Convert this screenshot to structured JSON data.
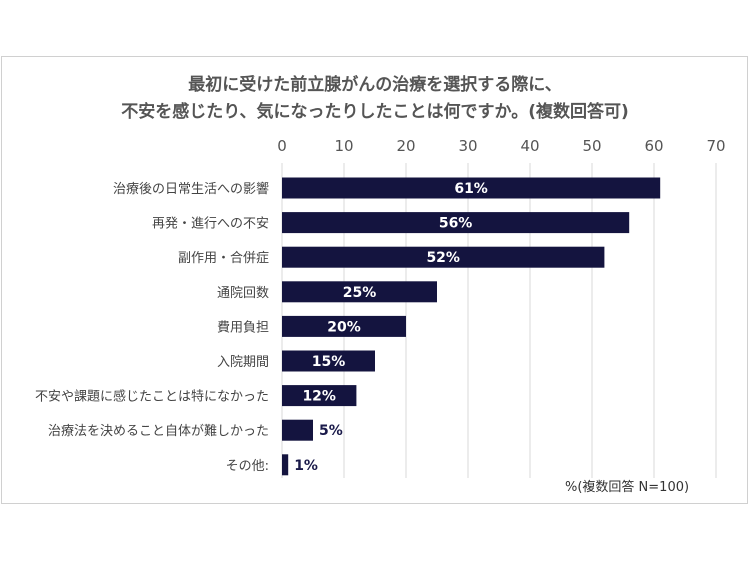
{
  "chart_data": {
    "type": "bar",
    "orientation": "horizontal",
    "title_lines": [
      "最初に受けた前立腺がんの治療を選択する際に、",
      "不安を感じたり、気になったりしたことは何ですか。(複数回答可)"
    ],
    "categories": [
      "治療後の日常生活への影響",
      "再発・進行への不安",
      "副作用・合併症",
      "通院回数",
      "費用負担",
      "入院期間",
      "不安や課題に感じたことは特になかった",
      "治療法を決めること自体が難しかった",
      "その他:"
    ],
    "values": [
      61,
      56,
      52,
      25,
      20,
      15,
      12,
      5,
      1
    ],
    "value_labels": [
      "61%",
      "56%",
      "52%",
      "25%",
      "20%",
      "15%",
      "12%",
      "5%",
      "1%"
    ],
    "x_ticks": [
      0,
      10,
      20,
      30,
      40,
      50,
      60,
      70
    ],
    "xlim": [
      0,
      70
    ],
    "grid": true,
    "bar_color": "#14143f",
    "note": "%(複数回答 N=100)"
  }
}
